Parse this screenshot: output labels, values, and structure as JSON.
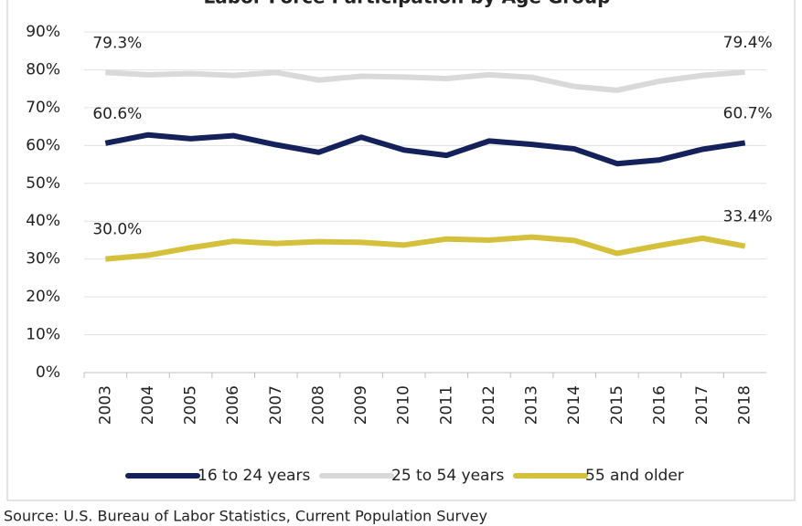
{
  "chart_data": {
    "type": "line",
    "title": "Labor Force Participation by Age Group",
    "categories": [
      "2003",
      "2004",
      "2005",
      "2006",
      "2007",
      "2008",
      "2009",
      "2010",
      "2011",
      "2012",
      "2013",
      "2014",
      "2015",
      "2016",
      "2017",
      "2018"
    ],
    "series": [
      {
        "name": "16 to 24 years",
        "color": "#14215a",
        "values": [
          60.6,
          62.8,
          61.8,
          62.6,
          60.2,
          58.2,
          62.2,
          58.8,
          57.4,
          61.2,
          60.3,
          59.1,
          55.2,
          56.2,
          59.0,
          60.7
        ],
        "value_labels": [
          "60.6%",
          null,
          null,
          null,
          null,
          null,
          null,
          null,
          null,
          null,
          null,
          null,
          null,
          null,
          null,
          "60.7%"
        ]
      },
      {
        "name": "25 to 54 years",
        "color": "#d9d9d9",
        "values": [
          79.3,
          78.7,
          79.0,
          78.5,
          79.3,
          77.3,
          78.3,
          78.1,
          77.7,
          78.7,
          78.0,
          75.6,
          74.6,
          77.0,
          78.5,
          79.4
        ],
        "value_labels": [
          "79.3%",
          null,
          null,
          null,
          null,
          null,
          null,
          null,
          null,
          null,
          null,
          null,
          null,
          null,
          null,
          "79.4%"
        ]
      },
      {
        "name": "55 and older",
        "color": "#d4c03a",
        "values": [
          30.0,
          31.0,
          33.0,
          34.7,
          34.1,
          34.6,
          34.4,
          33.7,
          35.3,
          35.0,
          35.8,
          34.9,
          31.5,
          33.6,
          35.5,
          33.4
        ],
        "value_labels": [
          "30.0%",
          null,
          null,
          null,
          null,
          null,
          null,
          null,
          null,
          null,
          null,
          null,
          null,
          null,
          null,
          "33.4%"
        ]
      }
    ],
    "ylim": [
      0,
      90
    ],
    "yticks": [
      {
        "value": 0,
        "label": "0%"
      },
      {
        "value": 10,
        "label": "10%"
      },
      {
        "value": 20,
        "label": "20%"
      },
      {
        "value": 30,
        "label": "30%"
      },
      {
        "value": 40,
        "label": "40%"
      },
      {
        "value": 50,
        "label": "50%"
      },
      {
        "value": 60,
        "label": "60%"
      },
      {
        "value": 70,
        "label": "70%"
      },
      {
        "value": 80,
        "label": "80%"
      },
      {
        "value": 90,
        "label": "90%"
      }
    ],
    "grid": true,
    "legend": "bottom",
    "source": "Source:  U.S. Bureau of Labor Statistics, Current Population Survey"
  }
}
